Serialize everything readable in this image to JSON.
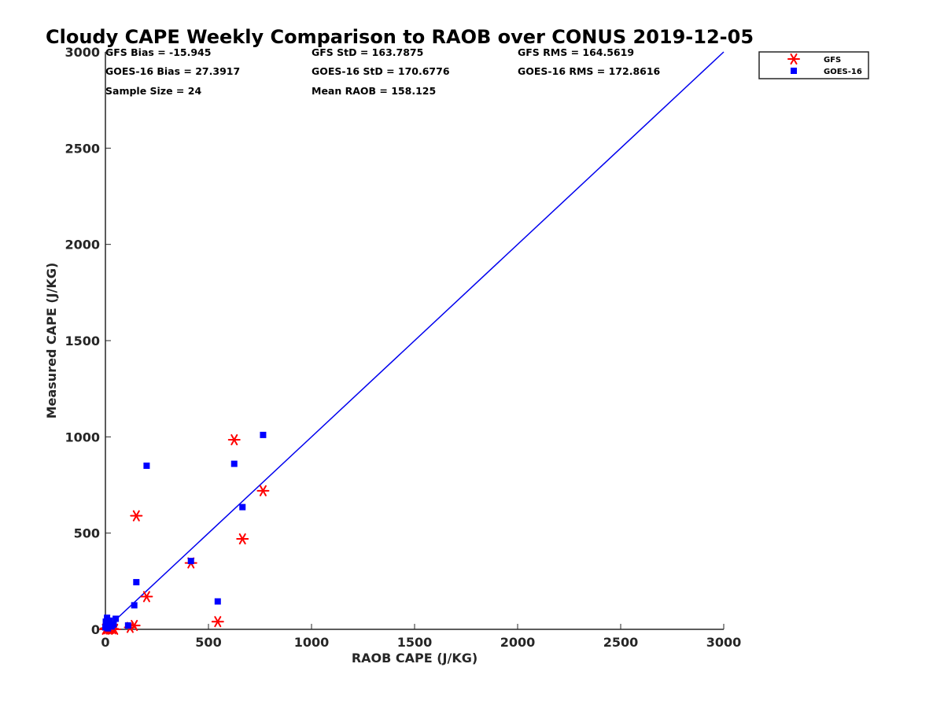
{
  "chart_data": {
    "type": "scatter",
    "title": "Cloudy CAPE Weekly Comparison to RAOB over CONUS 2019-12-05",
    "xlabel": "RAOB CAPE (J/KG)",
    "ylabel": "Measured CAPE (J/KG)",
    "xlim": [
      0,
      3000
    ],
    "ylim": [
      0,
      3000
    ],
    "xticks": [
      0,
      500,
      1000,
      1500,
      2000,
      2500,
      3000
    ],
    "yticks": [
      0,
      500,
      1000,
      1500,
      2000,
      2500,
      3000
    ],
    "grid": false,
    "legend_position": "top-right outside",
    "stats": [
      [
        "GFS Bias = -15.945",
        "GFS StD = 163.7875",
        "GFS RMS = 164.5619"
      ],
      [
        "GOES-16 Bias = 27.3917",
        "GOES-16 StD = 170.6776",
        "GOES-16 RMS = 172.8616"
      ],
      [
        "Sample Size = 24",
        "Mean RAOB = 158.125",
        ""
      ]
    ],
    "reference_line": {
      "x": [
        0,
        3000
      ],
      "y": [
        0,
        3000
      ],
      "color": "#0000ee"
    },
    "series": [
      {
        "name": "GFS",
        "marker": "asterisk",
        "color": "#ff0000",
        "points": [
          [
            0,
            0
          ],
          [
            3,
            5
          ],
          [
            8,
            3
          ],
          [
            12,
            8
          ],
          [
            18,
            2
          ],
          [
            25,
            5
          ],
          [
            35,
            3
          ],
          [
            45,
            0
          ],
          [
            120,
            10
          ],
          [
            140,
            20
          ],
          [
            150,
            590
          ],
          [
            200,
            170
          ],
          [
            415,
            345
          ],
          [
            545,
            40
          ],
          [
            625,
            985
          ],
          [
            665,
            470
          ],
          [
            765,
            720
          ]
        ]
      },
      {
        "name": "GOES-16",
        "marker": "square",
        "color": "#0000ff",
        "points": [
          [
            0,
            10
          ],
          [
            2,
            40
          ],
          [
            5,
            20
          ],
          [
            8,
            60
          ],
          [
            12,
            5
          ],
          [
            15,
            30
          ],
          [
            20,
            45
          ],
          [
            30,
            15
          ],
          [
            40,
            25
          ],
          [
            50,
            55
          ],
          [
            110,
            20
          ],
          [
            140,
            125
          ],
          [
            150,
            245
          ],
          [
            200,
            850
          ],
          [
            415,
            355
          ],
          [
            545,
            145
          ],
          [
            625,
            860
          ],
          [
            665,
            635
          ],
          [
            765,
            1010
          ]
        ]
      }
    ]
  }
}
